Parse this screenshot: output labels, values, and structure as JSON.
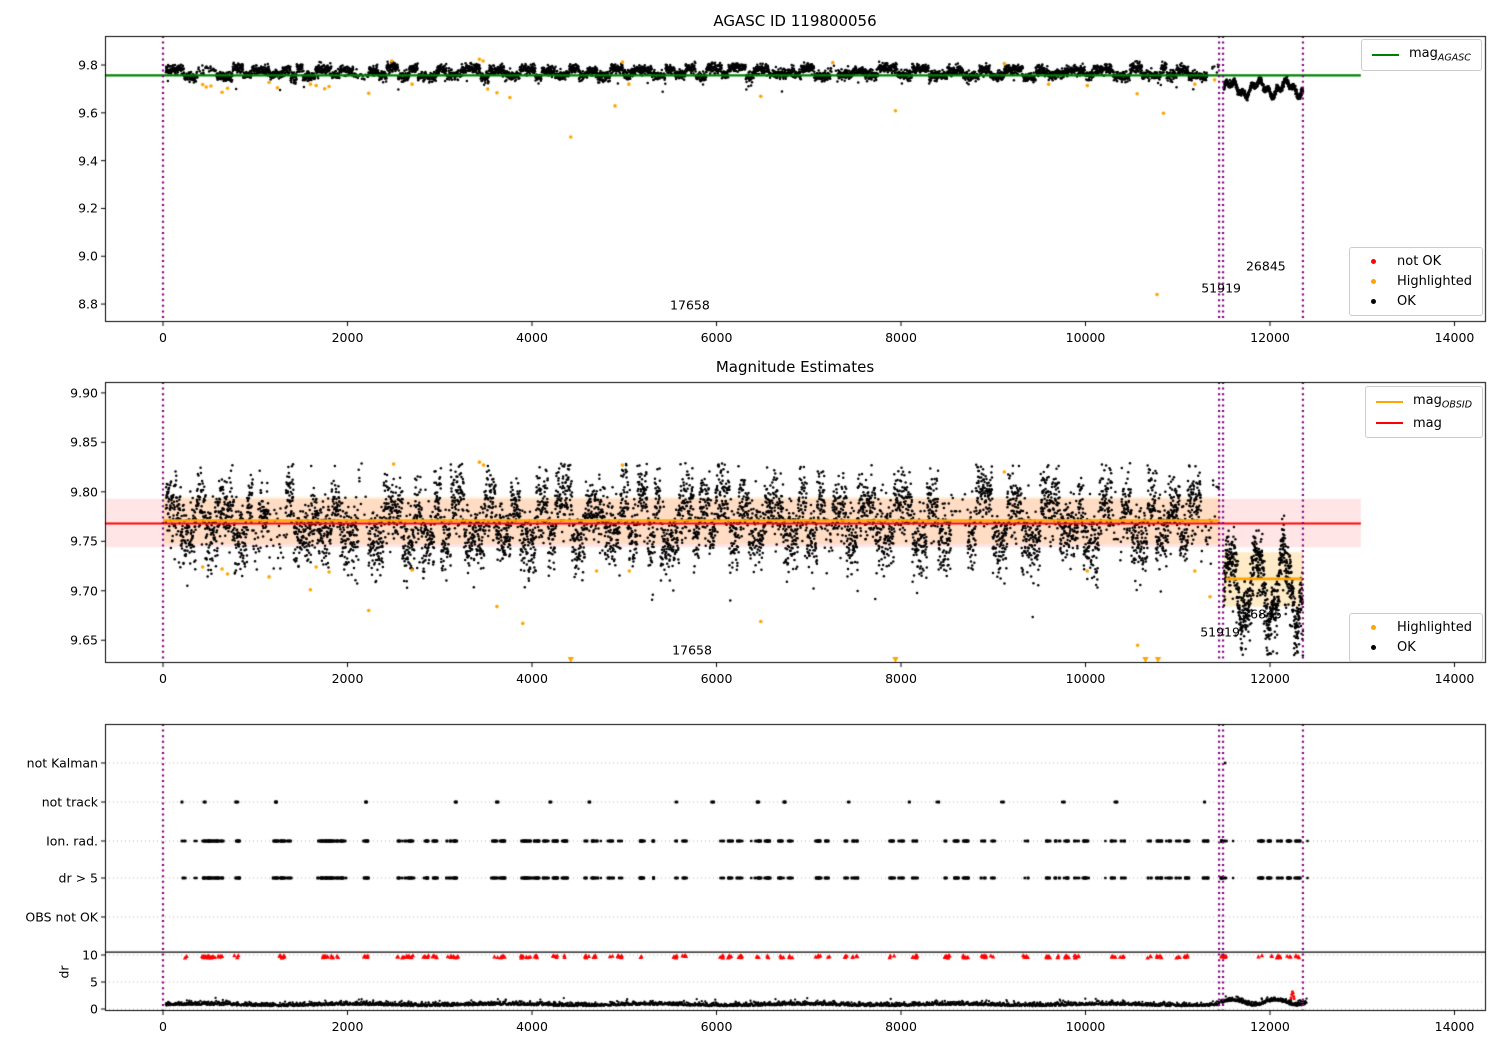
{
  "colors": {
    "black": "#000000",
    "green": "#008000",
    "red": "#ff0000",
    "orange": "#ffa500",
    "purple": "#800080",
    "grid": "#bbbbbb",
    "band_pink": "rgba(255,0,0,0.10)",
    "band_wheat_light": "rgba(255,166,0,0.15)",
    "band_wheat": "rgba(255,166,0,0.22)"
  },
  "x_axis": {
    "ticks": [
      0,
      2000,
      4000,
      6000,
      8000,
      10000,
      12000,
      14000
    ],
    "labels": [
      "0",
      "2000",
      "4000",
      "6000",
      "8000",
      "10000",
      "12000",
      "14000"
    ]
  },
  "chart_data": [
    {
      "type": "scatter",
      "title": "AGASC ID 119800056",
      "xlim": [
        -630,
        14340
      ],
      "ylim": [
        8.725,
        9.9214
      ],
      "y_ticks": {
        "values": [
          9.8,
          9.6,
          9.4,
          9.2,
          9.0,
          8.8
        ],
        "labels": [
          "9.8",
          "9.6",
          "9.4",
          "9.2",
          "9.0",
          "8.8"
        ]
      },
      "vlines": [
        0,
        11448,
        11491,
        12357
      ],
      "lines": [
        {
          "name": "mag_agasc",
          "x": [
            -630,
            12985
          ],
          "y": 9.757,
          "color": "#008000",
          "lw": 2.2
        }
      ],
      "scatter_model": {
        "main": {
          "x": [
            30,
            11455
          ],
          "n": 5200,
          "base": 9.769,
          "sigma": 0.0105,
          "seg_len": [
            60,
            220
          ],
          "seg_amp": [
            0.006,
            0.022
          ],
          "ymax": 9.824,
          "ymin": 9.7
        },
        "post": {
          "x": [
            11500,
            12357
          ],
          "n": 760,
          "base": 9.702,
          "a1": 0.026,
          "p1": 48,
          "a2": 0.013,
          "p2": 14.7,
          "sigma": 0.0065,
          "tail": 0.0,
          "ymin": 9.645
        }
      },
      "highlighted_points": [
        [
          430,
          9.718
        ],
        [
          468,
          9.708
        ],
        [
          520,
          9.712
        ],
        [
          640,
          9.686
        ],
        [
          700,
          9.703
        ],
        [
          1150,
          9.727
        ],
        [
          1240,
          9.705
        ],
        [
          1598,
          9.72
        ],
        [
          1660,
          9.714
        ],
        [
          1752,
          9.701
        ],
        [
          1800,
          9.71
        ],
        [
          2230,
          9.682
        ],
        [
          2480,
          9.817
        ],
        [
          2700,
          9.72
        ],
        [
          3430,
          9.824
        ],
        [
          3470,
          9.817
        ],
        [
          3520,
          9.7
        ],
        [
          3620,
          9.684
        ],
        [
          3760,
          9.664
        ],
        [
          4420,
          9.499
        ],
        [
          4900,
          9.629
        ],
        [
          4980,
          9.812
        ],
        [
          5050,
          9.72
        ],
        [
          6480,
          9.669
        ],
        [
          7260,
          9.81
        ],
        [
          7940,
          9.609
        ],
        [
          9120,
          9.806
        ],
        [
          9600,
          9.72
        ],
        [
          10020,
          9.714
        ],
        [
          10560,
          9.68
        ],
        [
          10775,
          8.84
        ],
        [
          10845,
          9.598
        ],
        [
          11185,
          9.72
        ],
        [
          11400,
          9.738
        ]
      ],
      "annotations": [
        {
          "text": "17658",
          "x": 5712,
          "y": 8.796
        },
        {
          "text": "51919",
          "x": 11470,
          "y": 8.867
        },
        {
          "text": "26845",
          "x": 11955,
          "y": 8.959
        }
      ],
      "legends": [
        {
          "loc": "upper right",
          "entries": [
            {
              "marker": "line",
              "color": "#008000",
              "label": "mag",
              "sub": "AGASC"
            }
          ]
        },
        {
          "loc": "lower right",
          "entries": [
            {
              "marker": "dot",
              "color": "#ff0000",
              "label": "not OK",
              "sub": null
            },
            {
              "marker": "dot",
              "color": "#ffa500",
              "label": "Highlighted",
              "sub": null
            },
            {
              "marker": "dot",
              "color": "#000000",
              "label": "OK",
              "sub": null
            }
          ]
        }
      ]
    },
    {
      "type": "scatter",
      "title": "Magnitude Estimates",
      "xlim": [
        -630,
        14340
      ],
      "ylim": [
        9.627,
        9.911
      ],
      "y_ticks": {
        "values": [
          9.9,
          9.85,
          9.8,
          9.75,
          9.7,
          9.65
        ],
        "labels": [
          "9.90",
          "9.85",
          "9.80",
          "9.75",
          "9.70",
          "9.65"
        ]
      },
      "vlines": [
        0,
        11448,
        11491,
        12357
      ],
      "bands": [
        {
          "x": [
            -630,
            12985
          ],
          "y": [
            9.744,
            9.793
          ],
          "color": "band_pink"
        },
        {
          "x": [
            0,
            11455
          ],
          "y": [
            9.747,
            9.795
          ],
          "color": "band_wheat_light"
        },
        {
          "x": [
            11500,
            12357
          ],
          "y": [
            9.684,
            9.739
          ],
          "color": "band_wheat"
        }
      ],
      "lines": [
        {
          "name": "mag",
          "x": [
            -630,
            12985
          ],
          "y": 9.768,
          "color": "#ff0000",
          "lw": 2.2
        },
        {
          "name": "mag_obsid_1",
          "x": [
            0,
            11455
          ],
          "y": 9.771,
          "color": "#ffa500",
          "lw": 2.6
        },
        {
          "name": "mag_obsid_2",
          "x": [
            11520,
            12357
          ],
          "y": 9.712,
          "color": "#ffa500",
          "lw": 2.6
        }
      ],
      "scatter_model": {
        "main": {
          "x": [
            30,
            11455
          ],
          "n": 6500,
          "base": 9.771,
          "sigma": 0.0165,
          "seg_len": [
            60,
            220
          ],
          "seg_amp": [
            0.008,
            0.026
          ],
          "ymax": 9.829,
          "ymin": 9.705
        },
        "post": {
          "x": [
            11500,
            12357
          ],
          "n": 780,
          "base": 9.705,
          "a1": 0.035,
          "p1": 46,
          "a2": 0.01,
          "p2": 16.0,
          "sigma": 0.012,
          "tail": 0.07,
          "ymin": 9.634
        }
      },
      "highlighted_points": [
        [
          430,
          9.724
        ],
        [
          640,
          9.722
        ],
        [
          700,
          9.717
        ],
        [
          1150,
          9.714
        ],
        [
          1598,
          9.701
        ],
        [
          1660,
          9.724
        ],
        [
          1800,
          9.719
        ],
        [
          2230,
          9.68
        ],
        [
          2500,
          9.828
        ],
        [
          2700,
          9.721
        ],
        [
          3430,
          9.83
        ],
        [
          3475,
          9.827
        ],
        [
          3620,
          9.684
        ],
        [
          3900,
          9.667
        ],
        [
          4700,
          9.72
        ],
        [
          4980,
          9.827
        ],
        [
          5055,
          9.72
        ],
        [
          6480,
          9.669
        ],
        [
          9120,
          9.82
        ],
        [
          10020,
          9.72
        ],
        [
          10565,
          9.645
        ],
        [
          11185,
          9.72
        ],
        [
          11350,
          9.694
        ]
      ],
      "clipped_low_x": [
        4420,
        7940,
        10650,
        10786
      ],
      "annotations": [
        {
          "text": "17658",
          "x": 5735,
          "y": 9.64
        },
        {
          "text": "51919",
          "x": 11459,
          "y": 9.658
        },
        {
          "text": "26845",
          "x": 11914,
          "y": 9.677
        }
      ],
      "legends": [
        {
          "loc": "upper right",
          "entries": [
            {
              "marker": "line",
              "color": "#ffa500",
              "label": "mag",
              "sub": "OBSID"
            },
            {
              "marker": "line",
              "color": "#ff0000",
              "label": "mag",
              "sub": null
            }
          ]
        },
        {
          "loc": "lower right",
          "entries": [
            {
              "marker": "dot",
              "color": "#ffa500",
              "label": "Highlighted",
              "sub": null
            },
            {
              "marker": "dot",
              "color": "#000000",
              "label": "OK",
              "sub": null
            }
          ]
        }
      ]
    },
    {
      "type": "flags",
      "title": "",
      "xlim": [
        -630,
        14340
      ],
      "ylim": [
        -0.37,
        52.78
      ],
      "rows": [
        {
          "label": "not Kalman",
          "y": 45.56
        },
        {
          "label": "not track",
          "y": 38.33
        },
        {
          "label": "Ion. rad.",
          "y": 31.11
        },
        {
          "label": "dr > 5",
          "y": 24.26
        },
        {
          "label": "OBS not OK",
          "y": 17.04
        }
      ],
      "dr_ticks": {
        "values": [
          10,
          5,
          0
        ],
        "labels": [
          "10",
          "5",
          "0"
        ]
      },
      "dr_axis_label": "dr",
      "hline": {
        "y": 10.55,
        "color": "#000000"
      },
      "vlines": [
        0,
        11448,
        11491,
        12357
      ],
      "not_kalman_x": [
        11513
      ],
      "not_track_x": [
        206,
        450,
        800,
        1230,
        2200,
        3170,
        3620,
        4200,
        4620,
        5560,
        5960,
        6450,
        6740,
        7430,
        8100,
        8400,
        9100,
        9760,
        10330,
        11300
      ],
      "flag_clusters": [
        230,
        450,
        480,
        515,
        560,
        625,
        800,
        1230,
        1290,
        1355,
        1700,
        1760,
        1820,
        1880,
        1950,
        2200,
        2550,
        2620,
        2690,
        2850,
        2950,
        3100,
        3170,
        3600,
        3680,
        3900,
        3960,
        4050,
        4150,
        4250,
        4350,
        4600,
        4680,
        4850,
        4950,
        5200,
        5300,
        5550,
        5650,
        6050,
        6150,
        6250,
        6450,
        6550,
        6700,
        6800,
        7100,
        7200,
        7400,
        7500,
        7900,
        8000,
        8150,
        8500,
        8600,
        8700,
        8900,
        9000,
        9350,
        9600,
        9700,
        9800,
        9900,
        10000,
        10300,
        10400,
        10700,
        10800,
        10900,
        11000,
        11100,
        11300,
        11500,
        11900,
        12000,
        12100,
        12200,
        12300
      ],
      "red_row": {
        "y_range": [
          9.5,
          9.92
        ],
        "color": "#ff0000"
      },
      "dr_trace": {
        "color": "#000000",
        "main": {
          "x": [
            30,
            11455
          ],
          "n": 2900,
          "base": 0.62,
          "absamp": 0.33,
          "wave": 0.12,
          "wave_p": 260,
          "max": 2.3
        },
        "post": {
          "x": [
            11470,
            12400
          ],
          "n": 340,
          "base": 1.05,
          "a": 0.45,
          "p": 75,
          "absamp": 0.35,
          "max": 3.0
        }
      },
      "dr_red_points": [
        [
          12228,
          2.1
        ],
        [
          12236,
          2.7
        ],
        [
          12243,
          3.2
        ],
        [
          12250,
          2.9
        ],
        [
          12257,
          2.3
        ],
        [
          12262,
          1.9
        ]
      ]
    }
  ]
}
